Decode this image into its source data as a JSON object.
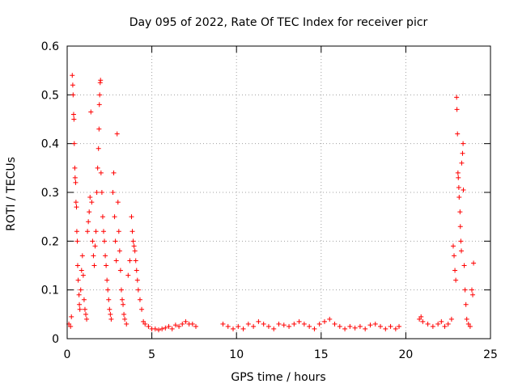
{
  "chart_data": {
    "type": "scatter",
    "title": "Day 095 of 2022, Rate Of TEC Index for receiver picr",
    "xlabel": "GPS time / hours",
    "ylabel": "ROTI / TECUs",
    "xlim": [
      0,
      25
    ],
    "ylim": [
      0,
      0.6
    ],
    "x_ticks": [
      "0",
      "5",
      "10",
      "15",
      "20",
      "25"
    ],
    "y_ticks": [
      "0",
      "0.1",
      "0.2",
      "0.3",
      "0.4",
      "0.5",
      "0.6"
    ],
    "x_tick_values": [
      0,
      5,
      10,
      15,
      20,
      25
    ],
    "y_tick_values": [
      0,
      0.1,
      0.2,
      0.3,
      0.4,
      0.5,
      0.6
    ],
    "grid": true,
    "marker": "+",
    "series": [
      {
        "name": "ROTI",
        "color": "#ff0000",
        "points": [
          [
            0.1,
            0.03
          ],
          [
            0.2,
            0.025
          ],
          [
            0.25,
            0.045
          ],
          [
            0.3,
            0.54
          ],
          [
            0.33,
            0.52
          ],
          [
            0.35,
            0.5
          ],
          [
            0.38,
            0.46
          ],
          [
            0.4,
            0.45
          ],
          [
            0.42,
            0.4
          ],
          [
            0.45,
            0.35
          ],
          [
            0.47,
            0.33
          ],
          [
            0.5,
            0.32
          ],
          [
            0.52,
            0.28
          ],
          [
            0.55,
            0.27
          ],
          [
            0.57,
            0.22
          ],
          [
            0.6,
            0.2
          ],
          [
            0.62,
            0.15
          ],
          [
            0.65,
            0.12
          ],
          [
            0.7,
            0.09
          ],
          [
            0.72,
            0.07
          ],
          [
            0.75,
            0.06
          ],
          [
            0.8,
            0.1
          ],
          [
            0.85,
            0.14
          ],
          [
            0.9,
            0.17
          ],
          [
            0.95,
            0.13
          ],
          [
            1.0,
            0.08
          ],
          [
            1.05,
            0.06
          ],
          [
            1.1,
            0.05
          ],
          [
            1.15,
            0.04
          ],
          [
            1.2,
            0.22
          ],
          [
            1.25,
            0.24
          ],
          [
            1.3,
            0.26
          ],
          [
            1.35,
            0.29
          ],
          [
            1.4,
            0.465
          ],
          [
            1.45,
            0.28
          ],
          [
            1.5,
            0.2
          ],
          [
            1.55,
            0.17
          ],
          [
            1.6,
            0.15
          ],
          [
            1.65,
            0.19
          ],
          [
            1.7,
            0.22
          ],
          [
            1.75,
            0.3
          ],
          [
            1.8,
            0.35
          ],
          [
            1.85,
            0.39
          ],
          [
            1.88,
            0.43
          ],
          [
            1.9,
            0.48
          ],
          [
            1.92,
            0.5
          ],
          [
            1.95,
            0.525
          ],
          [
            1.97,
            0.53
          ],
          [
            2.0,
            0.34
          ],
          [
            2.05,
            0.3
          ],
          [
            2.1,
            0.25
          ],
          [
            2.15,
            0.22
          ],
          [
            2.2,
            0.2
          ],
          [
            2.25,
            0.17
          ],
          [
            2.3,
            0.15
          ],
          [
            2.35,
            0.12
          ],
          [
            2.4,
            0.1
          ],
          [
            2.45,
            0.08
          ],
          [
            2.5,
            0.06
          ],
          [
            2.55,
            0.05
          ],
          [
            2.6,
            0.04
          ],
          [
            2.7,
            0.3
          ],
          [
            2.75,
            0.34
          ],
          [
            2.8,
            0.25
          ],
          [
            2.85,
            0.2
          ],
          [
            2.9,
            0.16
          ],
          [
            2.95,
            0.42
          ],
          [
            3.0,
            0.28
          ],
          [
            3.05,
            0.22
          ],
          [
            3.1,
            0.18
          ],
          [
            3.15,
            0.14
          ],
          [
            3.2,
            0.1
          ],
          [
            3.25,
            0.08
          ],
          [
            3.3,
            0.07
          ],
          [
            3.35,
            0.05
          ],
          [
            3.4,
            0.04
          ],
          [
            3.5,
            0.03
          ],
          [
            3.6,
            0.13
          ],
          [
            3.7,
            0.16
          ],
          [
            3.8,
            0.25
          ],
          [
            3.85,
            0.22
          ],
          [
            3.9,
            0.2
          ],
          [
            3.95,
            0.19
          ],
          [
            4.0,
            0.18
          ],
          [
            4.05,
            0.16
          ],
          [
            4.1,
            0.14
          ],
          [
            4.15,
            0.12
          ],
          [
            4.2,
            0.1
          ],
          [
            4.3,
            0.08
          ],
          [
            4.4,
            0.06
          ],
          [
            4.5,
            0.035
          ],
          [
            4.6,
            0.03
          ],
          [
            4.8,
            0.025
          ],
          [
            5.0,
            0.02
          ],
          [
            5.2,
            0.02
          ],
          [
            5.4,
            0.018
          ],
          [
            5.6,
            0.02
          ],
          [
            5.8,
            0.022
          ],
          [
            6.0,
            0.025
          ],
          [
            6.2,
            0.02
          ],
          [
            6.4,
            0.028
          ],
          [
            6.6,
            0.025
          ],
          [
            6.8,
            0.03
          ],
          [
            7.0,
            0.035
          ],
          [
            7.2,
            0.03
          ],
          [
            7.4,
            0.03
          ],
          [
            7.6,
            0.025
          ],
          [
            9.2,
            0.03
          ],
          [
            9.5,
            0.025
          ],
          [
            9.8,
            0.02
          ],
          [
            10.1,
            0.025
          ],
          [
            10.4,
            0.02
          ],
          [
            10.7,
            0.03
          ],
          [
            11.0,
            0.025
          ],
          [
            11.3,
            0.035
          ],
          [
            11.6,
            0.03
          ],
          [
            11.9,
            0.025
          ],
          [
            12.2,
            0.02
          ],
          [
            12.5,
            0.03
          ],
          [
            12.8,
            0.028
          ],
          [
            13.1,
            0.025
          ],
          [
            13.4,
            0.03
          ],
          [
            13.7,
            0.035
          ],
          [
            14.0,
            0.03
          ],
          [
            14.3,
            0.025
          ],
          [
            14.6,
            0.02
          ],
          [
            14.9,
            0.03
          ],
          [
            15.2,
            0.035
          ],
          [
            15.5,
            0.04
          ],
          [
            15.8,
            0.03
          ],
          [
            16.1,
            0.025
          ],
          [
            16.4,
            0.02
          ],
          [
            16.7,
            0.025
          ],
          [
            17.0,
            0.022
          ],
          [
            17.3,
            0.025
          ],
          [
            17.6,
            0.02
          ],
          [
            17.9,
            0.028
          ],
          [
            18.2,
            0.03
          ],
          [
            18.5,
            0.025
          ],
          [
            18.8,
            0.02
          ],
          [
            19.1,
            0.025
          ],
          [
            19.4,
            0.02
          ],
          [
            19.6,
            0.025
          ],
          [
            20.8,
            0.04
          ],
          [
            20.9,
            0.045
          ],
          [
            21.0,
            0.035
          ],
          [
            21.3,
            0.03
          ],
          [
            21.6,
            0.025
          ],
          [
            21.9,
            0.03
          ],
          [
            22.1,
            0.035
          ],
          [
            22.3,
            0.025
          ],
          [
            22.5,
            0.03
          ],
          [
            22.7,
            0.04
          ],
          [
            22.8,
            0.19
          ],
          [
            22.85,
            0.17
          ],
          [
            22.9,
            0.14
          ],
          [
            22.95,
            0.12
          ],
          [
            23.0,
            0.495
          ],
          [
            23.02,
            0.47
          ],
          [
            23.05,
            0.42
          ],
          [
            23.08,
            0.34
          ],
          [
            23.1,
            0.33
          ],
          [
            23.13,
            0.31
          ],
          [
            23.15,
            0.29
          ],
          [
            23.2,
            0.26
          ],
          [
            23.22,
            0.23
          ],
          [
            23.25,
            0.2
          ],
          [
            23.28,
            0.18
          ],
          [
            23.3,
            0.36
          ],
          [
            23.35,
            0.38
          ],
          [
            23.38,
            0.4
          ],
          [
            23.4,
            0.305
          ],
          [
            23.45,
            0.15
          ],
          [
            23.5,
            0.1
          ],
          [
            23.55,
            0.07
          ],
          [
            23.6,
            0.04
          ],
          [
            23.7,
            0.03
          ],
          [
            23.8,
            0.025
          ],
          [
            23.9,
            0.1
          ],
          [
            23.95,
            0.09
          ],
          [
            24.0,
            0.155
          ]
        ]
      }
    ]
  }
}
